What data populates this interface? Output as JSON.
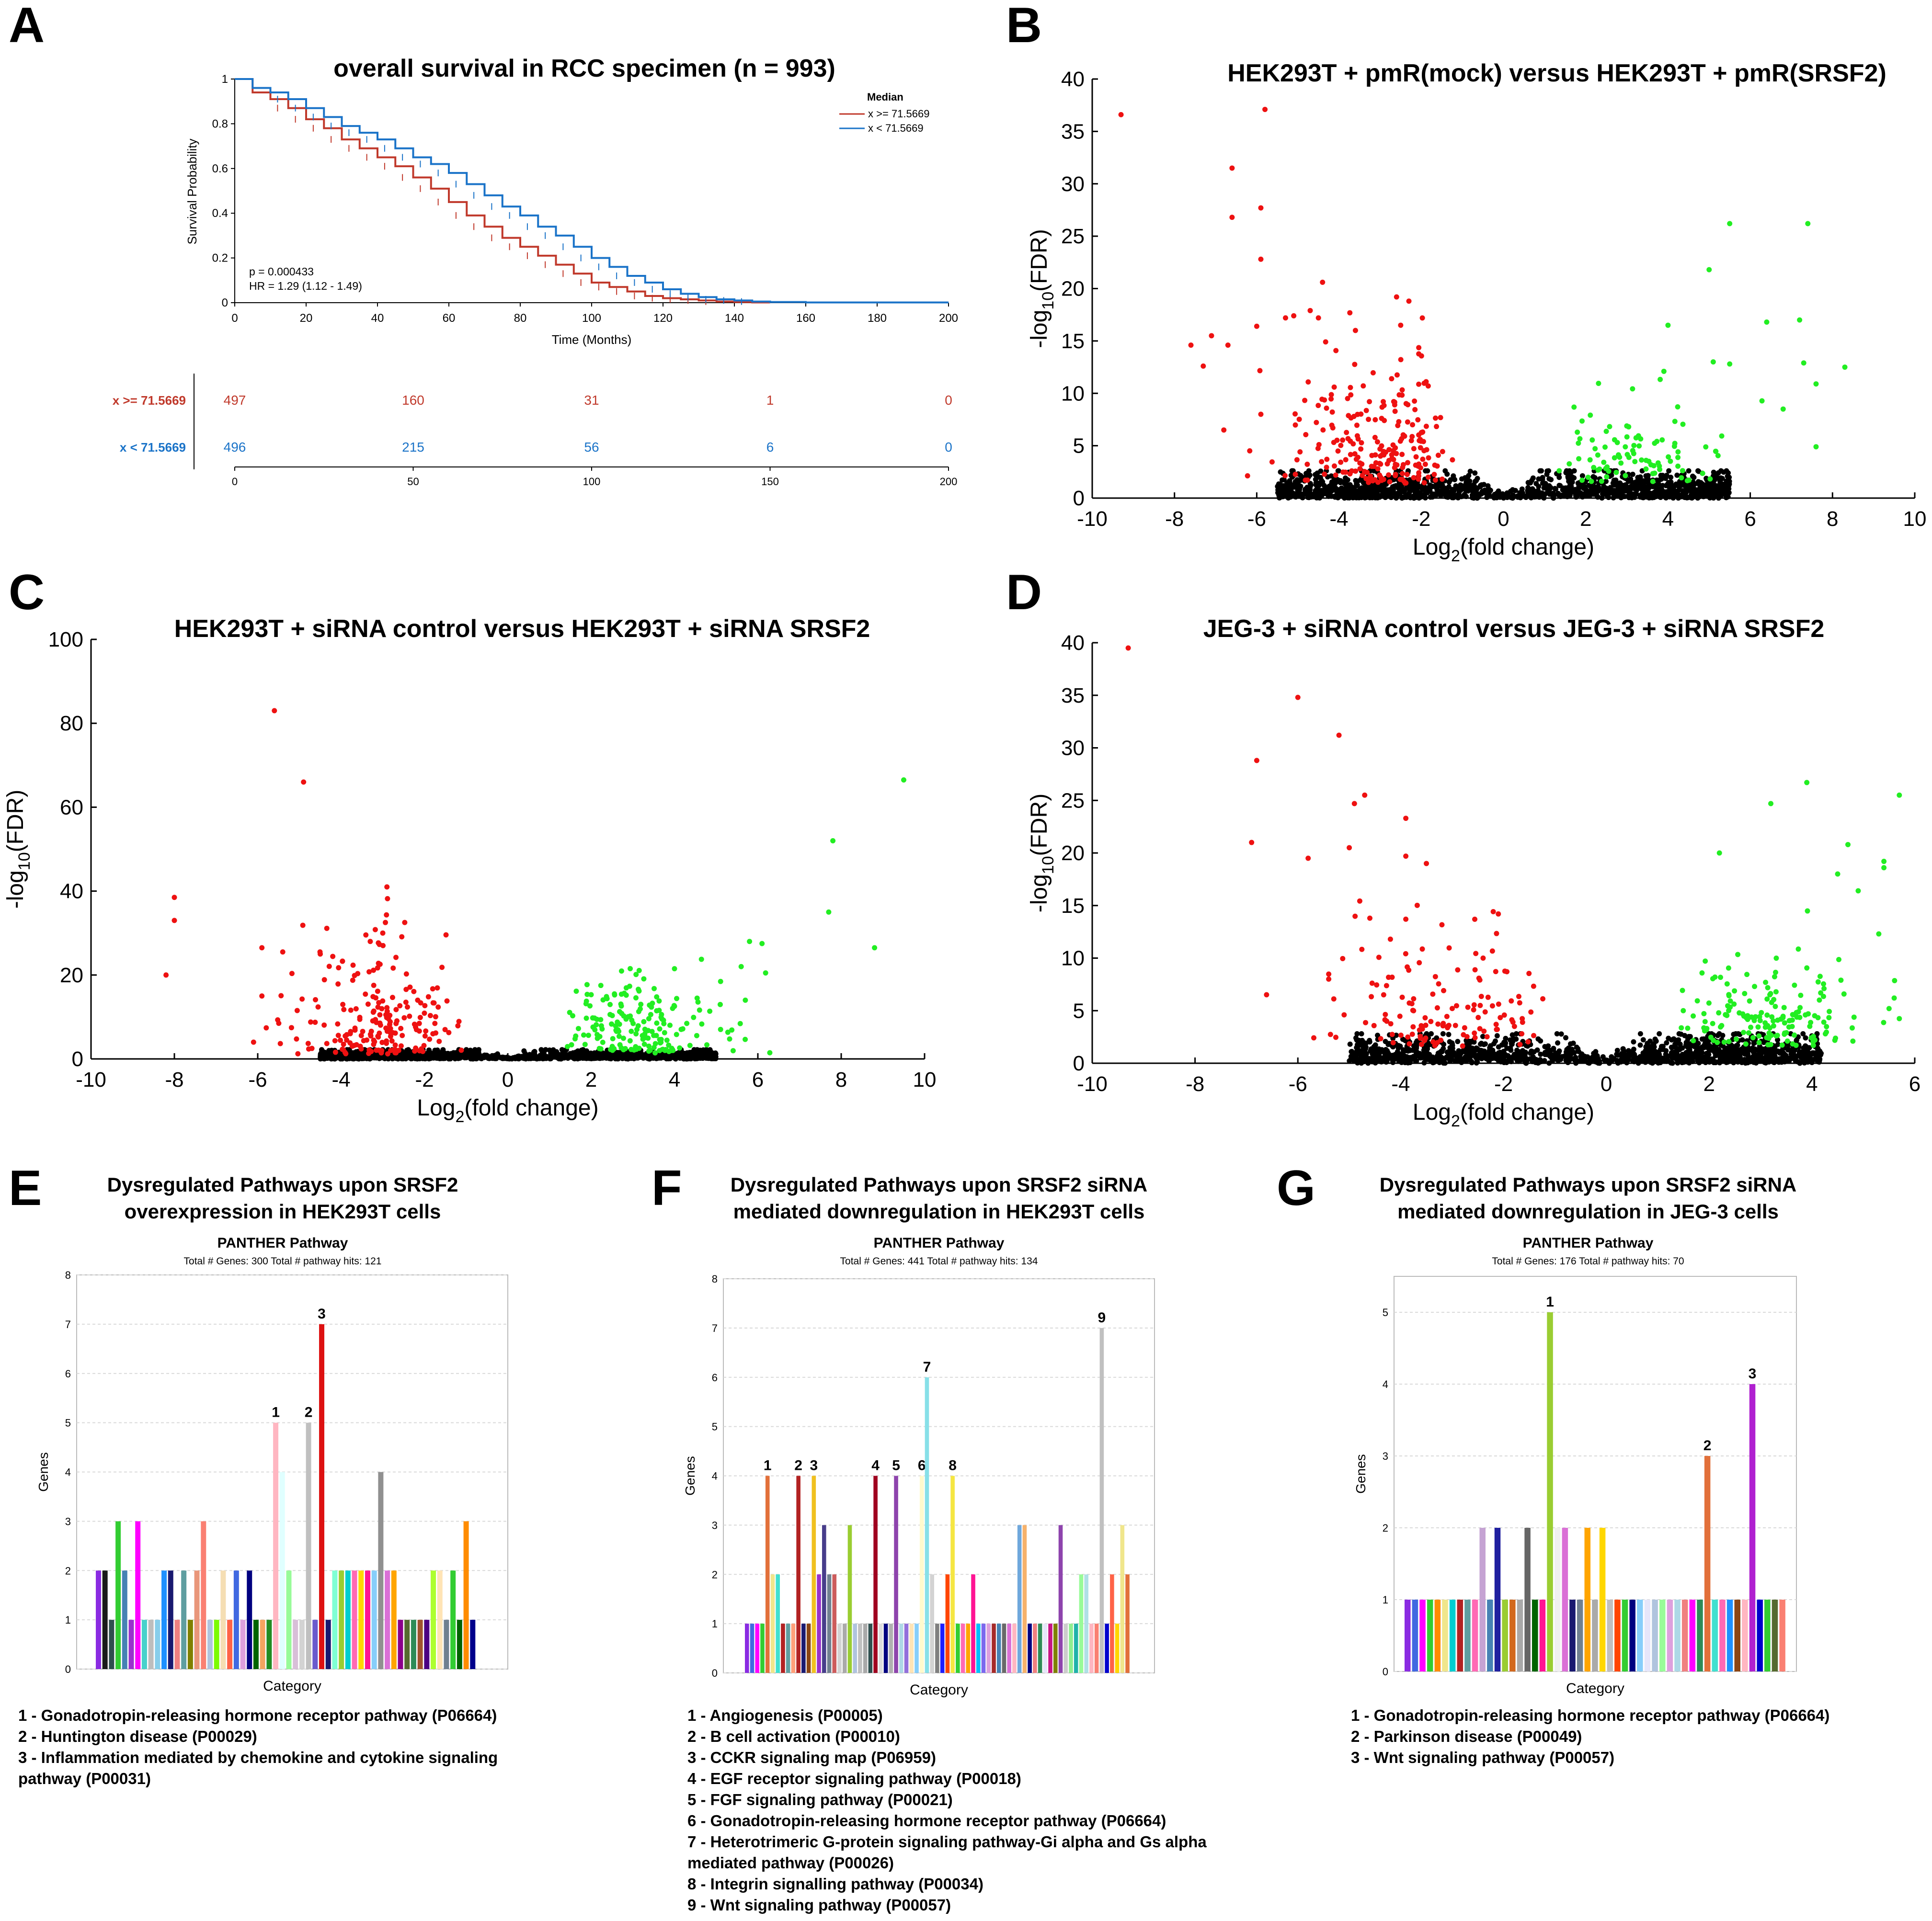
{
  "panels": {
    "A": {
      "letter": "A"
    },
    "B": {
      "letter": "B"
    },
    "C": {
      "letter": "C"
    },
    "D": {
      "letter": "D"
    },
    "E": {
      "letter": "E"
    },
    "F": {
      "letter": "F"
    },
    "G": {
      "letter": "G"
    }
  },
  "chart_data": [
    {
      "id": "A",
      "type": "line",
      "title": "overall survival in RCC specimen (n = 993)",
      "xlabel": "Time (Months)",
      "ylabel": "Survival Probability",
      "xlim": [
        0,
        200
      ],
      "ylim": [
        0,
        1
      ],
      "xticks": [
        "0",
        "20",
        "40",
        "60",
        "80",
        "100",
        "120",
        "140",
        "160",
        "180",
        "200"
      ],
      "yticks": [
        "0",
        "0.2",
        "0.4",
        "0.6",
        "0.8",
        "1"
      ],
      "legend_title": "Median",
      "stats": [
        "p = 0.000433",
        "HR = 1.29 (1.12 - 1.49)"
      ],
      "series": [
        {
          "name": "x >= 71.5669",
          "color": "#c0392b",
          "x": [
            0,
            5,
            10,
            15,
            20,
            25,
            30,
            35,
            40,
            45,
            50,
            55,
            60,
            65,
            70,
            75,
            80,
            85,
            90,
            95,
            100,
            105,
            110,
            115,
            120,
            125,
            130,
            135,
            140,
            145,
            150
          ],
          "y": [
            1,
            0.94,
            0.91,
            0.87,
            0.82,
            0.78,
            0.73,
            0.69,
            0.65,
            0.61,
            0.56,
            0.51,
            0.45,
            0.39,
            0.34,
            0.29,
            0.25,
            0.21,
            0.17,
            0.13,
            0.09,
            0.07,
            0.05,
            0.03,
            0.02,
            0.015,
            0.01,
            0.005,
            0.003,
            0.001,
            0
          ]
        },
        {
          "name": "x < 71.5669",
          "color": "#1a73c8",
          "x": [
            0,
            5,
            10,
            15,
            20,
            25,
            30,
            35,
            40,
            45,
            50,
            55,
            60,
            65,
            70,
            75,
            80,
            85,
            90,
            95,
            100,
            105,
            110,
            115,
            120,
            125,
            130,
            135,
            140,
            145,
            150,
            160,
            200
          ],
          "y": [
            1,
            0.96,
            0.94,
            0.91,
            0.87,
            0.83,
            0.79,
            0.76,
            0.73,
            0.69,
            0.65,
            0.62,
            0.58,
            0.53,
            0.48,
            0.43,
            0.39,
            0.34,
            0.3,
            0.25,
            0.2,
            0.16,
            0.12,
            0.09,
            0.06,
            0.04,
            0.025,
            0.015,
            0.01,
            0.005,
            0.003,
            0.001,
            0.001
          ]
        }
      ],
      "risk_table": {
        "xticks": [
          "0",
          "50",
          "100",
          "150",
          "200"
        ],
        "rows": [
          {
            "label": "x >= 71.5669",
            "color": "#c0392b",
            "values": [
              "497",
              "160",
              "31",
              "1",
              "0"
            ]
          },
          {
            "label": "x < 71.5669",
            "color": "#1a73c8",
            "values": [
              "496",
              "215",
              "56",
              "6",
              "0"
            ]
          }
        ]
      }
    },
    {
      "id": "B",
      "type": "scatter",
      "title": "HEK293T + pmR(mock) versus HEK293T + pmR(SRSF2)",
      "xlabel_main": "Log",
      "xlabel_sub": "2",
      "xlabel_tail": "(fold change)",
      "ylabel_main": "-log",
      "ylabel_sub": "10",
      "ylabel_tail": "(FDR)",
      "xlim": [
        -10,
        10
      ],
      "ylim": [
        0,
        40
      ],
      "xticks": [
        "-10",
        "-8",
        "-6",
        "-4",
        "-2",
        "0",
        "2",
        "4",
        "6",
        "8",
        "10"
      ],
      "yticks": [
        "0",
        "5",
        "10",
        "15",
        "20",
        "25",
        "30",
        "35",
        "40"
      ],
      "left_spread": 5.5,
      "right_spread": 5.5,
      "cloud_height": 2.6,
      "left_red": 220,
      "right_green": 90,
      "black_n": 1400,
      "seed": 11,
      "down": [
        [
          -9.3,
          36.6
        ],
        [
          -5.8,
          37.1
        ],
        [
          -6.6,
          31.5
        ],
        [
          -5.9,
          27.7
        ],
        [
          -6.6,
          26.8
        ],
        [
          -5.9,
          22.8
        ],
        [
          -4.4,
          20.6
        ],
        [
          -7.6,
          14.6
        ],
        [
          -7.1,
          15.5
        ],
        [
          -6.7,
          14.6
        ],
        [
          -6.0,
          16.4
        ],
        [
          -5.3,
          17.2
        ],
        [
          -5.1,
          17.4
        ],
        [
          -4.7,
          17.9
        ],
        [
          -4.5,
          17.2
        ],
        [
          -2.6,
          19.2
        ],
        [
          -2.3,
          18.8
        ],
        [
          -2.5,
          16.5
        ],
        [
          -3.6,
          16.0
        ],
        [
          -7.3,
          12.6
        ],
        [
          -5.9,
          8.0
        ],
        [
          -6.8,
          6.5
        ]
      ],
      "up": [
        [
          5.5,
          26.2
        ],
        [
          7.4,
          26.2
        ],
        [
          5.0,
          21.8
        ],
        [
          7.2,
          17.0
        ],
        [
          6.4,
          16.8
        ],
        [
          4.0,
          16.5
        ],
        [
          5.1,
          13.0
        ],
        [
          5.5,
          12.8
        ],
        [
          7.3,
          12.9
        ],
        [
          8.3,
          12.5
        ],
        [
          3.9,
          12.1
        ],
        [
          7.6,
          10.9
        ],
        [
          6.8,
          8.5
        ],
        [
          7.6,
          4.9
        ]
      ]
    },
    {
      "id": "C",
      "type": "scatter",
      "title": "HEK293T + siRNA control versus HEK293T + siRNA SRSF2",
      "xlabel_main": "Log",
      "xlabel_sub": "2",
      "xlabel_tail": "(fold change)",
      "ylabel_main": "-log",
      "ylabel_sub": "10",
      "ylabel_tail": "(FDR)",
      "xlim": [
        -10,
        10
      ],
      "ylim": [
        0,
        100
      ],
      "xticks": [
        "-10",
        "-8",
        "-6",
        "-4",
        "-2",
        "0",
        "2",
        "4",
        "6",
        "8",
        "10"
      ],
      "yticks": [
        "0",
        "20",
        "40",
        "60",
        "80",
        "100"
      ],
      "left_spread": 4.5,
      "right_spread": 5.0,
      "cloud_height": 2.2,
      "left_red": 200,
      "right_green": 180,
      "black_n": 1400,
      "seed": 23,
      "down": [
        [
          -5.6,
          83.0
        ],
        [
          -4.9,
          66.0
        ],
        [
          -2.9,
          41.0
        ],
        [
          -8.0,
          38.5
        ],
        [
          -8.0,
          33.0
        ],
        [
          -8.2,
          20.0
        ],
        [
          -5.9,
          26.5
        ],
        [
          -5.4,
          25.5
        ],
        [
          -4.5,
          25.0
        ],
        [
          -5.9,
          15.0
        ],
        [
          -6.1,
          4.0
        ],
        [
          -3.0,
          30.0
        ],
        [
          -3.3,
          28.0
        ]
      ],
      "up": [
        [
          9.5,
          66.5
        ],
        [
          7.8,
          52.0
        ],
        [
          7.7,
          35.0
        ],
        [
          8.8,
          26.5
        ],
        [
          5.8,
          28.0
        ],
        [
          6.1,
          27.5
        ],
        [
          4.0,
          21.5
        ],
        [
          5.6,
          22.0
        ],
        [
          5.7,
          14.0
        ]
      ]
    },
    {
      "id": "D",
      "type": "scatter",
      "title": "JEG-3 + siRNA control versus JEG-3 + siRNA SRSF2",
      "xlabel_main": "Log",
      "xlabel_sub": "2",
      "xlabel_tail": "(fold change)",
      "ylabel_main": "-log",
      "ylabel_sub": "10",
      "ylabel_tail": "(FDR)",
      "xlim": [
        -10,
        6
      ],
      "ylim": [
        0,
        40
      ],
      "xticks": [
        "-10",
        "-8",
        "-6",
        "-4",
        "-2",
        "0",
        "2",
        "4",
        "6"
      ],
      "yticks": [
        "0",
        "5",
        "10",
        "15",
        "20",
        "25",
        "30",
        "35",
        "40"
      ],
      "left_spread": 5.0,
      "right_spread": 4.2,
      "cloud_height": 2.8,
      "left_red": 130,
      "right_green": 160,
      "black_n": 1300,
      "seed": 37,
      "down": [
        [
          -9.3,
          39.5
        ],
        [
          -6.0,
          34.8
        ],
        [
          -5.2,
          31.2
        ],
        [
          -6.8,
          28.8
        ],
        [
          -4.7,
          25.5
        ],
        [
          -4.9,
          24.7
        ],
        [
          -3.9,
          23.3
        ],
        [
          -6.9,
          21.0
        ],
        [
          -5.0,
          20.5
        ],
        [
          -5.8,
          19.5
        ],
        [
          -3.9,
          19.7
        ],
        [
          -3.5,
          19.0
        ],
        [
          -2.1,
          14.2
        ],
        [
          -4.6,
          13.8
        ],
        [
          -3.9,
          13.7
        ],
        [
          -4.2,
          11.8
        ],
        [
          -5.1,
          4.6
        ],
        [
          -5.4,
          8.0
        ]
      ],
      "up": [
        [
          3.2,
          24.7
        ],
        [
          3.9,
          26.7
        ],
        [
          5.7,
          25.5
        ],
        [
          4.7,
          20.8
        ],
        [
          2.2,
          20.0
        ],
        [
          5.4,
          19.2
        ],
        [
          5.4,
          18.6
        ],
        [
          4.5,
          18.0
        ],
        [
          4.9,
          16.4
        ],
        [
          5.3,
          12.3
        ],
        [
          5.6,
          6.2
        ],
        [
          5.5,
          5.2
        ]
      ]
    },
    {
      "id": "E",
      "type": "bar",
      "title_lines": [
        "Dysregulated Pathways upon SRSF2",
        "overexpression in HEK293T cells"
      ],
      "subtitle": "PANTHER Pathway",
      "totals": "Total # Genes: 300     Total # pathway hits: 121",
      "ylabel": "Genes",
      "xlabel": "Category",
      "ylim": [
        0,
        8
      ],
      "yticks": [
        "0",
        "1",
        "2",
        "3",
        "4",
        "5",
        "6",
        "7",
        "8"
      ],
      "values": [
        2,
        2,
        1,
        3,
        2,
        1,
        3,
        1,
        1,
        1,
        2,
        2,
        1,
        2,
        1,
        2,
        3,
        1,
        1,
        2,
        1,
        2,
        1,
        2,
        1,
        1,
        1,
        5,
        4,
        2,
        1,
        1,
        5,
        1,
        7,
        1,
        2,
        2,
        2,
        2,
        2,
        2,
        2,
        4,
        2,
        2,
        1,
        1,
        1,
        1,
        1,
        2,
        2,
        1,
        2,
        1,
        3,
        1
      ],
      "colors": [
        "#8a2be2",
        "#1a1a1a",
        "#2f4f4f",
        "#32cd32",
        "#4682b4",
        "#9932cc",
        "#ff00ff",
        "#48d1cc",
        "#bdbdbd",
        "#87ceeb",
        "#1e90ff",
        "#191970",
        "#f08080",
        "#5f9ea0",
        "#808000",
        "#e9967a",
        "#fa8072",
        "#b0c4de",
        "#7cfc00",
        "#f5deb3",
        "#ff6347",
        "#4169e1",
        "#dda0dd",
        "#000080",
        "#006400",
        "#f4a460",
        "#228b22",
        "#ffb6c1",
        "#e0ffff",
        "#98fb98",
        "#d8bfd8",
        "#d3d3d3",
        "#c0c0c0",
        "#6a5acd",
        "#dd1111",
        "#191970",
        "#7fffd4",
        "#9acd32",
        "#00ced1",
        "#ff69b4",
        "#ffd700",
        "#ff1493",
        "#87cefa",
        "#909090",
        "#da70d6",
        "#ffa500",
        "#8b008b",
        "#556b2f",
        "#2e8b57",
        "#a0522d",
        "#4b0082",
        "#adff2f",
        "#ffe4b5",
        "#708090",
        "#32cd32",
        "#006400",
        "#ff8c00",
        "#00008b"
      ],
      "labels": {
        "27": "1",
        "32": "2",
        "34": "3"
      },
      "legend": [
        "1 - Gonadotropin-releasing hormone receptor pathway (P06664)",
        "2 - Huntington disease (P00029)",
        "3 - Inflammation mediated by chemokine and cytokine signaling",
        "pathway (P00031)"
      ]
    },
    {
      "id": "F",
      "type": "bar",
      "title_lines": [
        "Dysregulated Pathways upon SRSF2 siRNA",
        "mediated downregulation in HEK293T cells"
      ],
      "subtitle": "PANTHER Pathway",
      "totals": "Total # Genes: 441     Total # pathway hits: 134",
      "ylabel": "Genes",
      "xlabel": "Category",
      "ylim": [
        0,
        8
      ],
      "yticks": [
        "0",
        "1",
        "2",
        "3",
        "4",
        "5",
        "6",
        "7",
        "8"
      ],
      "values": [
        1,
        1,
        1,
        1,
        4,
        2,
        2,
        1,
        1,
        1,
        4,
        1,
        1,
        4,
        2,
        3,
        2,
        2,
        1,
        1,
        3,
        1,
        1,
        1,
        1,
        4,
        1,
        1,
        1,
        4,
        1,
        1,
        1,
        1,
        4,
        6,
        2,
        1,
        1,
        2,
        4,
        1,
        1,
        1,
        2,
        1,
        1,
        1,
        1,
        1,
        1,
        1,
        1,
        3,
        3,
        1,
        1,
        1,
        1,
        1,
        1,
        3,
        1,
        1,
        1,
        2,
        2,
        1,
        1,
        7,
        1,
        2,
        1,
        3,
        2
      ],
      "colors": [
        "#8a2be2",
        "#4169e1",
        "#ff00ff",
        "#32cd32",
        "#e2703a",
        "#f0e68c",
        "#40e0d0",
        "#b22222",
        "#5f9ea0",
        "#ffa07a",
        "#b22222",
        "#191970",
        "#8b4513",
        "#f0c020",
        "#9932cc",
        "#483d8b",
        "#708090",
        "#cd5c5c",
        "#d3d3d3",
        "#aaaaaa",
        "#9acd32",
        "#b0c4de",
        "#c0c0c0",
        "#a9a9a9",
        "#2f4f4f",
        "#a0001f",
        "#dcdcdc",
        "#000080",
        "#b0b0b0",
        "#8e44ad",
        "#add8e6",
        "#9370db",
        "#ffe4b5",
        "#87cefa",
        "#fffacd",
        "#87e0e8",
        "#d3d3d3",
        "#808080",
        "#1e1eff",
        "#ff4500",
        "#f5e642",
        "#32cd32",
        "#ff69b4",
        "#ffa500",
        "#ff1493",
        "#00bfff",
        "#7b68ee",
        "#dda0dd",
        "#a52a2a",
        "#4682b4",
        "#696969",
        "#da70d6",
        "#ffb6c1",
        "#6fa8dc",
        "#f6b26b",
        "#000080",
        "#f08080",
        "#2e8b57",
        "#e6e6fa",
        "#c71585",
        "#808000",
        "#8e44ad",
        "#cccccc",
        "#90ee90",
        "#20b2aa",
        "#98fb98",
        "#b0e0e6",
        "#ffb6c1",
        "#fa8072",
        "#c0c0c0",
        "#0000cd",
        "#ff6347",
        "#ffd700",
        "#f0e68c",
        "#e2703a"
      ],
      "labels": {
        "4": "1",
        "10": "2",
        "13": "3",
        "25": "4",
        "29": "5",
        "34": "6",
        "35": "7",
        "40": "8",
        "69": "9"
      },
      "legend": [
        "1 - Angiogenesis (P00005)",
        "2 - B cell activation (P00010)",
        "3 - CCKR signaling map (P06959)",
        "4 - EGF receptor signaling pathway (P00018)",
        "5 - FGF signaling pathway (P00021)",
        "6 - Gonadotropin-releasing hormone receptor pathway (P06664)",
        "7 - Heterotrimeric G-protein signaling pathway-Gi alpha and Gs alpha",
        "mediated pathway (P00026)",
        "8 - Integrin signalling pathway (P00034)",
        "9 - Wnt signaling pathway (P00057)"
      ]
    },
    {
      "id": "G",
      "type": "bar",
      "title_lines": [
        "Dysregulated Pathways upon SRSF2 siRNA",
        "mediated downregulation in JEG-3 cells"
      ],
      "subtitle": "PANTHER Pathway",
      "totals": "Total # Genes: 176     Total # pathway hits: 70",
      "ylabel": "Genes",
      "xlabel": "Category",
      "ylim": [
        0,
        5.5
      ],
      "yticks": [
        "0",
        "1",
        "2",
        "3",
        "4",
        "5"
      ],
      "values": [
        1,
        1,
        1,
        1,
        1,
        1,
        1,
        1,
        1,
        1,
        2,
        1,
        2,
        1,
        1,
        1,
        2,
        1,
        1,
        5,
        2,
        2,
        1,
        1,
        2,
        1,
        2,
        1,
        1,
        1,
        1,
        1,
        1,
        1,
        1,
        1,
        1,
        1,
        1,
        1,
        3,
        1,
        1,
        1,
        1,
        1,
        4,
        1,
        1,
        1,
        1
      ],
      "colors": [
        "#8a2be2",
        "#4169e1",
        "#ff00ff",
        "#32cd32",
        "#ff8c00",
        "#f0e68c",
        "#00ced1",
        "#b22222",
        "#5f9ea0",
        "#ff69b4",
        "#c5a3d3",
        "#4682b4",
        "#2020a0",
        "#9acd32",
        "#d2691e",
        "#a9a9a9",
        "#666666",
        "#006400",
        "#ff1493",
        "#9acd32",
        "#f0f0f0",
        "#da70d6",
        "#191970",
        "#708090",
        "#ffa500",
        "#aaaaaa",
        "#ffd700",
        "#c0c0c0",
        "#ff4500",
        "#32cd32",
        "#000080",
        "#87cefa",
        "#e6e6fa",
        "#b0c4de",
        "#98fb98",
        "#dda0dd",
        "#add8e6",
        "#f08080",
        "#ff00ff",
        "#2e8b57",
        "#e2703a",
        "#40e0d0",
        "#ff69b4",
        "#1e90ff",
        "#8b4513",
        "#ffb6c1",
        "#b020d0",
        "#0000cd",
        "#32cd32",
        "#556b2f",
        "#fa8072"
      ],
      "labels": {
        "19": "1",
        "40": "2",
        "46": "3"
      },
      "legend": [
        "1 - Gonadotropin-releasing hormone receptor pathway (P06664)",
        "2 - Parkinson disease (P00049)",
        "3 - Wnt signaling pathway (P00057)"
      ]
    }
  ]
}
